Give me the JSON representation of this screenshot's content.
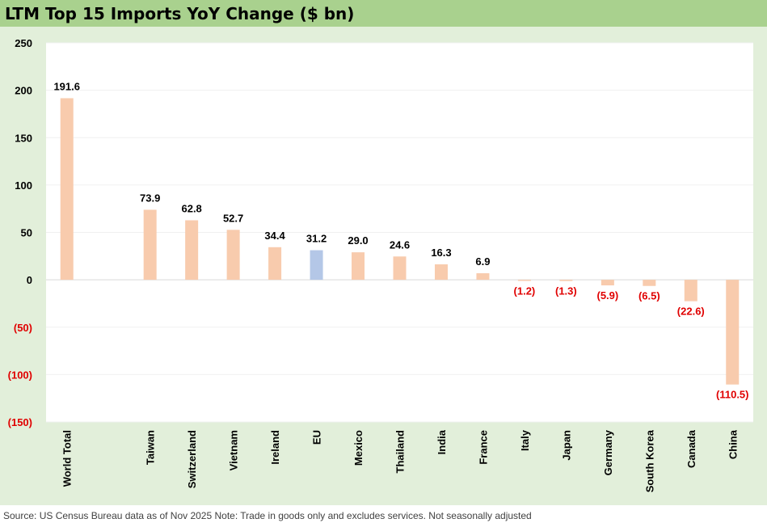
{
  "chart_data": {
    "type": "bar",
    "title": "LTM Top 15 Imports YoY Change ($ bn)",
    "categories": [
      "World Total",
      "",
      "Taiwan",
      "Switzerland",
      "Vietnam",
      "Ireland",
      "EU",
      "Mexico",
      "Thailand",
      "India",
      "France",
      "Italy",
      "Japan",
      "Germany",
      "South Korea",
      "Canada",
      "China"
    ],
    "values": [
      191.6,
      null,
      73.9,
      62.8,
      52.7,
      34.4,
      31.2,
      29.0,
      24.6,
      16.3,
      6.9,
      -1.2,
      -1.3,
      -5.9,
      -6.5,
      -22.6,
      -110.5
    ],
    "data_labels": [
      "191.6",
      "",
      "73.9",
      "62.8",
      "52.7",
      "34.4",
      "31.2",
      "29.0",
      "24.6",
      "16.3",
      "6.9",
      "(1.2)",
      "(1.3)",
      "(5.9)",
      "(6.5)",
      "(22.6)",
      "(110.5)"
    ],
    "highlight_category": "EU",
    "ylim": [
      -150,
      250
    ],
    "yticks": [
      250,
      200,
      150,
      100,
      50,
      0,
      -50,
      -100,
      -150
    ],
    "ytick_labels": [
      "250",
      "200",
      "150",
      "100",
      "50",
      "0",
      "(50)",
      "(100)",
      "(150)"
    ],
    "xlabel": "",
    "ylabel": "",
    "grid": true,
    "colors": {
      "bar": "#f8cbad",
      "highlight_bar": "#b4c7e7",
      "negative_label": "#e00000",
      "positive_label": "#000000",
      "title_bg": "#a9d18e",
      "chart_bg": "#e2efda",
      "plot_bg": "#ffffff"
    }
  },
  "source_note": "Source: US Census Bureau data as of Nov 2025 Note: Trade in goods only and excludes services. Not seasonally adjusted"
}
